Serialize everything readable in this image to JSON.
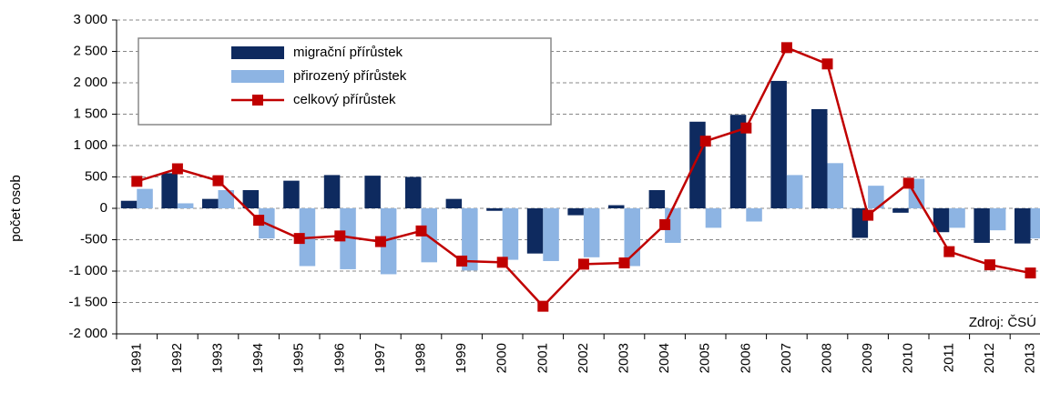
{
  "chart_data": {
    "type": "bar_line",
    "y_label": "počet osob",
    "annotation": "Zdroj: ČSÚ",
    "categories": [
      "1991",
      "1992",
      "1993",
      "1994",
      "1995",
      "1996",
      "1997",
      "1998",
      "1999",
      "2000",
      "2001",
      "2002",
      "2003",
      "2004",
      "2005",
      "2006",
      "2007",
      "2008",
      "2009",
      "2010",
      "2011",
      "2012",
      "2013"
    ],
    "series": [
      {
        "name": "migrační přírůstek",
        "type": "bar",
        "color": "#0e2a5f",
        "values": [
          120,
          560,
          150,
          290,
          440,
          530,
          520,
          500,
          150,
          -40,
          -720,
          -110,
          50,
          290,
          1380,
          1490,
          2030,
          1580,
          -470,
          -70,
          -380,
          -550,
          -560
        ]
      },
      {
        "name": "přirozený přírůstek",
        "type": "bar",
        "color": "#8db4e3",
        "values": [
          310,
          80,
          290,
          -480,
          -920,
          -970,
          -1050,
          -860,
          -990,
          -820,
          -840,
          -780,
          -920,
          -550,
          -310,
          -210,
          530,
          720,
          360,
          470,
          -310,
          -350,
          -480
        ]
      },
      {
        "name": "celkový přírůstek",
        "type": "line",
        "color": "#c00000",
        "values": [
          430,
          630,
          440,
          -190,
          -480,
          -440,
          -530,
          -360,
          -840,
          -860,
          -1560,
          -890,
          -870,
          -260,
          1070,
          1280,
          2560,
          2300,
          -110,
          400,
          -690,
          -900,
          -1030
        ]
      }
    ],
    "ylim": [
      -2000,
      3000
    ],
    "yticks": [
      {
        "value": -2000,
        "label": "-2 000"
      },
      {
        "value": -1500,
        "label": "-1 500"
      },
      {
        "value": -1000,
        "label": "-1 000"
      },
      -500,
      0,
      500,
      {
        "value": 1000,
        "label": "1 000"
      },
      {
        "value": 1500,
        "label": "1 500"
      },
      {
        "value": 2000,
        "label": "2 000"
      },
      {
        "value": 2500,
        "label": "2 500"
      },
      {
        "value": 3000,
        "label": "3 000"
      }
    ],
    "grid": true
  }
}
